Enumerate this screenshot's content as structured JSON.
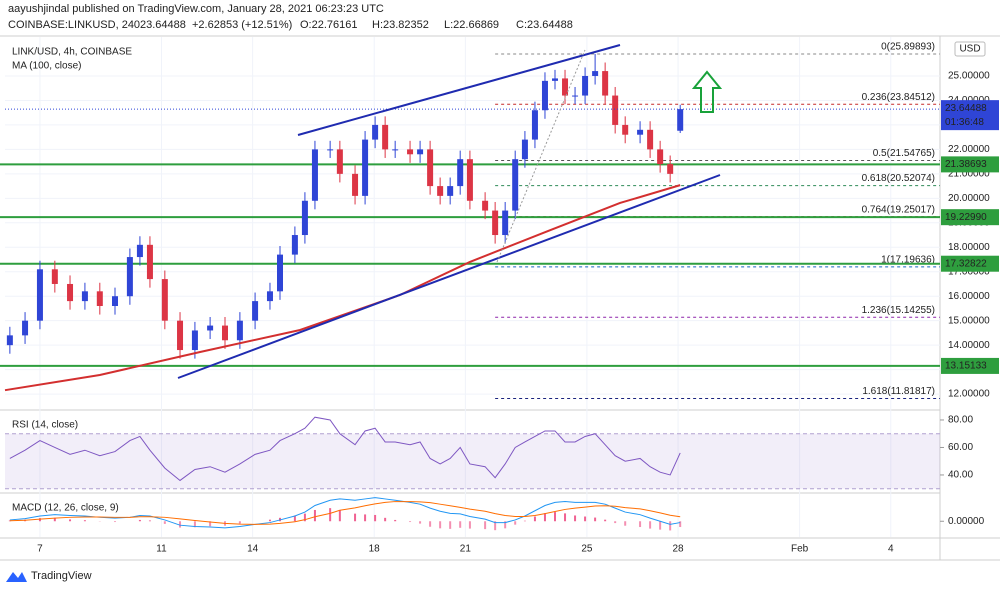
{
  "header": {
    "published": "aayushjindal published on TradingView.com, January 28, 2021 06:23:23 UTC",
    "symbol": "COINBASE:LINKUSD, 240",
    "price": "23.64488",
    "change": "+2.62853 (+12.51%)",
    "open": "O:22.76161",
    "high": "H:23.82352",
    "low": "L:22.66869",
    "close": "C:23.64488"
  },
  "footer": {
    "brand": "TradingView"
  },
  "currency": "USD",
  "chart_data": [
    {
      "type": "candlestick",
      "title": "LINK/USD, 4h, COINBASE",
      "up_color": "#2f45d6",
      "down_color": "#dc3545",
      "x": [
        6.01,
        6.51,
        7.0,
        7.49,
        7.99,
        8.48,
        8.97,
        9.47,
        9.96,
        10.29,
        10.62,
        11.11,
        11.61,
        12.1,
        12.6,
        13.09,
        13.58,
        14.08,
        14.57,
        14.9,
        15.39,
        15.72,
        16.05,
        16.55,
        16.87,
        17.37,
        17.7,
        18.03,
        18.36,
        18.69,
        19.18,
        19.51,
        19.84,
        20.17,
        20.5,
        20.83,
        21.15,
        21.65,
        21.98,
        22.31,
        22.64,
        22.96,
        23.29,
        23.62,
        23.95,
        24.28,
        24.61,
        24.94,
        25.27,
        25.6,
        25.93,
        26.26,
        26.75,
        27.08,
        27.41,
        27.74,
        28.07
      ],
      "open": [
        14.0,
        14.4,
        15.0,
        17.1,
        16.5,
        15.8,
        16.2,
        15.6,
        16.0,
        17.6,
        18.1,
        16.7,
        15.0,
        13.8,
        14.6,
        14.8,
        14.2,
        15.0,
        15.8,
        16.2,
        17.7,
        18.5,
        19.9,
        22.0,
        22.0,
        21.0,
        20.1,
        22.4,
        23.0,
        22.0,
        22.0,
        21.8,
        22.0,
        20.5,
        20.1,
        20.5,
        21.6,
        19.9,
        19.5,
        18.5,
        19.5,
        21.6,
        22.4,
        23.6,
        24.8,
        24.9,
        24.2,
        24.2,
        25.0,
        25.2,
        24.2,
        23.0,
        22.6,
        22.8,
        22.0,
        21.4,
        22.76161
      ],
      "high": [
        14.75,
        15.35,
        17.45,
        17.45,
        16.85,
        16.55,
        16.55,
        16.35,
        17.95,
        18.45,
        18.45,
        17.05,
        15.35,
        14.95,
        15.15,
        15.15,
        15.35,
        16.15,
        16.55,
        18.05,
        18.85,
        20.25,
        22.35,
        22.35,
        22.35,
        21.35,
        22.75,
        23.35,
        23.35,
        22.35,
        22.35,
        22.35,
        22.35,
        20.85,
        20.85,
        21.95,
        21.95,
        20.25,
        19.85,
        19.85,
        21.95,
        22.75,
        23.95,
        25.15,
        25.25,
        25.25,
        24.55,
        25.35,
        25.9,
        25.55,
        24.55,
        23.35,
        23.15,
        23.15,
        22.35,
        21.75,
        23.82352
      ],
      "low": [
        13.65,
        14.05,
        14.65,
        16.15,
        15.45,
        15.45,
        15.25,
        15.25,
        15.65,
        17.25,
        16.35,
        14.65,
        13.45,
        13.45,
        14.25,
        13.85,
        13.85,
        14.65,
        15.45,
        15.85,
        17.35,
        18.15,
        19.55,
        21.65,
        20.65,
        19.75,
        19.75,
        22.05,
        21.65,
        21.65,
        21.45,
        21.45,
        20.15,
        19.75,
        19.75,
        20.15,
        19.55,
        19.15,
        18.15,
        18.15,
        19.15,
        21.25,
        22.05,
        23.25,
        24.45,
        23.85,
        23.85,
        23.85,
        24.65,
        23.85,
        22.65,
        22.25,
        22.25,
        21.65,
        21.05,
        20.65,
        22.66869
      ],
      "close": [
        14.4,
        15.0,
        17.1,
        16.5,
        15.8,
        16.2,
        15.6,
        16.0,
        17.6,
        18.1,
        16.7,
        15.0,
        13.8,
        14.6,
        14.8,
        14.2,
        15.0,
        15.8,
        16.2,
        17.7,
        18.5,
        19.9,
        22.0,
        22.0,
        21.0,
        20.1,
        22.4,
        23.0,
        22.0,
        22.0,
        21.8,
        22.0,
        20.5,
        20.1,
        20.5,
        21.6,
        19.9,
        19.5,
        18.5,
        19.5,
        21.6,
        22.4,
        23.6,
        24.8,
        24.9,
        24.2,
        24.2,
        25.0,
        25.2,
        24.2,
        23.0,
        22.6,
        22.8,
        22.0,
        21.4,
        21.0,
        23.64488
      ],
      "xlim": [
        5.85,
        36.62
      ],
      "xticks": [
        7,
        11,
        14,
        18,
        21,
        25,
        28,
        {
          "value": 32,
          "label": "Feb"
        },
        {
          "value": 35,
          "label": "4"
        }
      ],
      "ylim": [
        11.35,
        26.47
      ],
      "yticks": [
        {
          "value": 12,
          "label": "12.00000"
        },
        {
          "value": 13,
          "label": "13.00000"
        },
        {
          "value": 14,
          "label": "14.00000"
        },
        {
          "value": 15,
          "label": "15.00000"
        },
        {
          "value": 16,
          "label": "16.00000"
        },
        {
          "value": 17,
          "label": "17.00000"
        },
        {
          "value": 18,
          "label": "18.00000"
        },
        {
          "value": 19,
          "label": "19.00000"
        },
        {
          "value": 20,
          "label": "20.00000"
        },
        {
          "value": 21,
          "label": "21.00000"
        },
        {
          "value": 22,
          "label": "22.00000"
        },
        {
          "value": 23,
          "label": "23.00000"
        },
        {
          "value": 24,
          "label": "24.00000"
        },
        {
          "value": 25,
          "label": "25.00000"
        }
      ],
      "grid": true,
      "ma": {
        "name": "MA (100, close)",
        "color": "#d32f2f",
        "x": [
          5.85,
          8.97,
          12.27,
          15.56,
          18.85,
          21.15,
          23.79,
          26.09,
          28.07
        ],
        "values": [
          12.16,
          12.78,
          13.72,
          14.62,
          16.05,
          17.4,
          18.7,
          19.81,
          20.54
        ]
      },
      "hlines": {
        "color": "#2e9e3e",
        "levels": [
          {
            "value": 21.38693,
            "label": "21.38693"
          },
          {
            "value": 19.2299,
            "label": "19.22990"
          },
          {
            "value": 17.32822,
            "label": "17.32822"
          },
          {
            "value": 13.15133,
            "label": "13.15133"
          }
        ]
      },
      "fib": {
        "start": 21.98,
        "levels": [
          {
            "value": 25.89893,
            "label": "0(25.89893)",
            "color": "#888888"
          },
          {
            "value": 23.84512,
            "label": "0.236(23.84512)",
            "color": "#c62828"
          },
          {
            "value": 21.54765,
            "label": "0.5(21.54765)",
            "color": "#555555"
          },
          {
            "value": 20.52074,
            "label": "0.618(20.52074)",
            "color": "#2e8b57"
          },
          {
            "value": 19.25017,
            "label": "0.764(19.25017)",
            "color": "#b71c1c"
          },
          {
            "value": 17.19636,
            "label": "1(17.19636)",
            "color": "#1565c0"
          },
          {
            "value": 15.14255,
            "label": "1.236(15.14255)",
            "color": "#8e24aa"
          },
          {
            "value": 11.81817,
            "label": "1.618(11.81817)",
            "color": "#1a237e"
          }
        ]
      },
      "last": {
        "value": 23.64488,
        "label": "23.64488",
        "countdown": "01:36:48",
        "color": "#2f45d6"
      }
    },
    {
      "type": "line",
      "title": "RSI (14, close)",
      "color": "#7e57c2",
      "band": [
        30,
        70
      ],
      "x": [
        6.01,
        6.51,
        7.0,
        7.49,
        7.99,
        8.48,
        8.97,
        9.47,
        9.96,
        10.29,
        10.62,
        11.11,
        11.61,
        12.1,
        12.6,
        13.09,
        13.58,
        14.08,
        14.57,
        14.9,
        15.39,
        15.72,
        16.05,
        16.55,
        16.87,
        17.37,
        17.7,
        18.03,
        18.36,
        18.69,
        19.18,
        19.51,
        19.84,
        20.17,
        20.5,
        20.83,
        21.15,
        21.65,
        21.98,
        22.31,
        22.64,
        22.96,
        23.29,
        23.62,
        23.95,
        24.28,
        24.61,
        24.94,
        25.27,
        25.6,
        25.93,
        26.26,
        26.75,
        27.08,
        27.41,
        27.74,
        28.07
      ],
      "values": [
        52,
        58,
        65,
        60,
        55,
        58,
        54,
        57,
        65,
        68,
        58,
        45,
        36,
        44,
        46,
        42,
        48,
        55,
        58,
        65,
        70,
        74,
        82,
        80,
        70,
        62,
        72,
        74,
        64,
        64,
        62,
        64,
        52,
        48,
        52,
        60,
        48,
        46,
        38,
        48,
        60,
        64,
        68,
        72,
        72,
        64,
        64,
        68,
        70,
        62,
        54,
        50,
        52,
        46,
        42,
        40,
        56
      ],
      "ylim": [
        27.6,
        85.8
      ],
      "yticks": [
        {
          "value": 40,
          "label": "40.00"
        },
        {
          "value": 60,
          "label": "60.00"
        },
        {
          "value": 80,
          "label": "80.00"
        }
      ]
    },
    {
      "type": "macd",
      "title": "MACD (12, 26, close, 9)",
      "macd_color": "#2196f3",
      "signal_color": "#ff6d00",
      "hist_colors": [
        "#f06292",
        "#f48fb1"
      ],
      "x": [
        6.01,
        6.51,
        7.0,
        7.49,
        7.99,
        8.48,
        8.97,
        9.47,
        9.96,
        10.29,
        10.62,
        11.11,
        11.61,
        12.1,
        12.6,
        13.09,
        13.58,
        14.08,
        14.57,
        14.9,
        15.39,
        15.72,
        16.05,
        16.55,
        16.87,
        17.37,
        17.7,
        18.03,
        18.36,
        18.69,
        19.18,
        19.51,
        19.84,
        20.17,
        20.5,
        20.83,
        21.15,
        21.65,
        21.98,
        22.31,
        22.64,
        22.96,
        23.29,
        23.62,
        23.95,
        24.28,
        24.61,
        24.94,
        25.27,
        25.6,
        25.93,
        26.26,
        26.75,
        27.08,
        27.41,
        27.74,
        28.07
      ],
      "macd": [
        0.05,
        0.1,
        0.2,
        0.25,
        0.22,
        0.2,
        0.15,
        0.12,
        0.15,
        0.22,
        0.2,
        0.05,
        -0.15,
        -0.2,
        -0.22,
        -0.25,
        -0.2,
        -0.12,
        -0.05,
        0.05,
        0.2,
        0.35,
        0.6,
        0.8,
        0.85,
        0.8,
        0.85,
        0.9,
        0.85,
        0.8,
        0.72,
        0.65,
        0.5,
        0.38,
        0.3,
        0.28,
        0.18,
        0.08,
        -0.05,
        -0.05,
        0.05,
        0.2,
        0.4,
        0.6,
        0.72,
        0.75,
        0.72,
        0.72,
        0.72,
        0.65,
        0.5,
        0.35,
        0.25,
        0.12,
        0.0,
        -0.12,
        -0.05
      ],
      "signal": [
        0.02,
        0.04,
        0.08,
        0.12,
        0.15,
        0.16,
        0.16,
        0.15,
        0.15,
        0.17,
        0.17,
        0.15,
        0.09,
        0.03,
        -0.03,
        -0.08,
        -0.11,
        -0.12,
        -0.11,
        -0.08,
        -0.02,
        0.06,
        0.17,
        0.3,
        0.42,
        0.51,
        0.59,
        0.66,
        0.72,
        0.75,
        0.75,
        0.74,
        0.71,
        0.65,
        0.59,
        0.53,
        0.46,
        0.38,
        0.29,
        0.22,
        0.18,
        0.18,
        0.22,
        0.29,
        0.37,
        0.45,
        0.5,
        0.54,
        0.58,
        0.59,
        0.57,
        0.52,
        0.47,
        0.4,
        0.32,
        0.23,
        0.17
      ],
      "histogram": [
        0.03,
        0.06,
        0.12,
        0.13,
        0.07,
        0.04,
        -0.01,
        -0.03,
        0,
        0.05,
        0.03,
        -0.1,
        -0.24,
        -0.23,
        -0.19,
        -0.17,
        -0.09,
        0,
        0.06,
        0.13,
        0.22,
        0.29,
        0.43,
        0.5,
        0.43,
        0.29,
        0.26,
        0.24,
        0.13,
        0.05,
        -0.03,
        -0.09,
        -0.21,
        -0.27,
        -0.29,
        -0.25,
        -0.28,
        -0.3,
        -0.34,
        -0.27,
        -0.13,
        0.02,
        0.18,
        0.31,
        0.35,
        0.3,
        0.22,
        0.18,
        0.14,
        0.06,
        -0.07,
        -0.17,
        -0.22,
        -0.28,
        -0.32,
        -0.35,
        -0.22
      ],
      "ylim": [
        -0.6,
        1.0
      ],
      "yticks": [
        {
          "value": 0,
          "label": "0.00000"
        }
      ]
    }
  ]
}
